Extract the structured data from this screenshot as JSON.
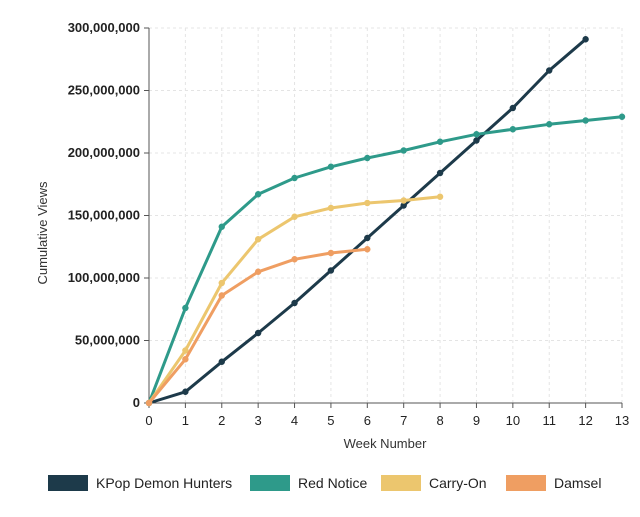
{
  "chart_data": {
    "type": "line",
    "xlabel": "Week Number",
    "ylabel": "Cumulative Views",
    "xlim": [
      0,
      13
    ],
    "ylim": [
      0,
      300000000
    ],
    "x_ticks": [
      0,
      1,
      2,
      3,
      4,
      5,
      6,
      7,
      8,
      9,
      10,
      11,
      12,
      13
    ],
    "y_ticks": [
      0,
      50000000,
      100000000,
      150000000,
      200000000,
      250000000,
      300000000
    ],
    "y_tick_labels": [
      "0",
      "50,000,000",
      "100,000,000",
      "150,000,000",
      "200,000,000",
      "250,000,000",
      "300,000,000"
    ],
    "grid": true,
    "legend_position": "bottom",
    "series": [
      {
        "name": "KPop Demon Hunters",
        "color": "#1d3a4a",
        "x": [
          0,
          1,
          2,
          3,
          4,
          5,
          6,
          7,
          8,
          9,
          10,
          11,
          12
        ],
        "values": [
          0,
          9000000,
          33000000,
          56000000,
          80000000,
          106000000,
          132000000,
          158000000,
          184000000,
          210000000,
          236000000,
          266000000,
          291000000
        ]
      },
      {
        "name": "Red Notice",
        "color": "#2e9a8a",
        "x": [
          0,
          1,
          2,
          3,
          4,
          5,
          6,
          7,
          8,
          9,
          10,
          11,
          12,
          13
        ],
        "values": [
          0,
          76000000,
          141000000,
          167000000,
          180000000,
          189000000,
          196000000,
          202000000,
          209000000,
          215000000,
          219000000,
          223000000,
          226000000,
          229000000
        ]
      },
      {
        "name": "Carry-On",
        "color": "#ecc66e",
        "x": [
          0,
          1,
          2,
          3,
          4,
          5,
          6,
          7,
          8
        ],
        "values": [
          0,
          42000000,
          96000000,
          131000000,
          149000000,
          156000000,
          160000000,
          162000000,
          165000000
        ]
      },
      {
        "name": "Damsel",
        "color": "#ef9e62",
        "x": [
          0,
          1,
          2,
          3,
          4,
          5,
          6
        ],
        "values": [
          0,
          35000000,
          86000000,
          105000000,
          115000000,
          120000000,
          123000000
        ]
      }
    ]
  }
}
